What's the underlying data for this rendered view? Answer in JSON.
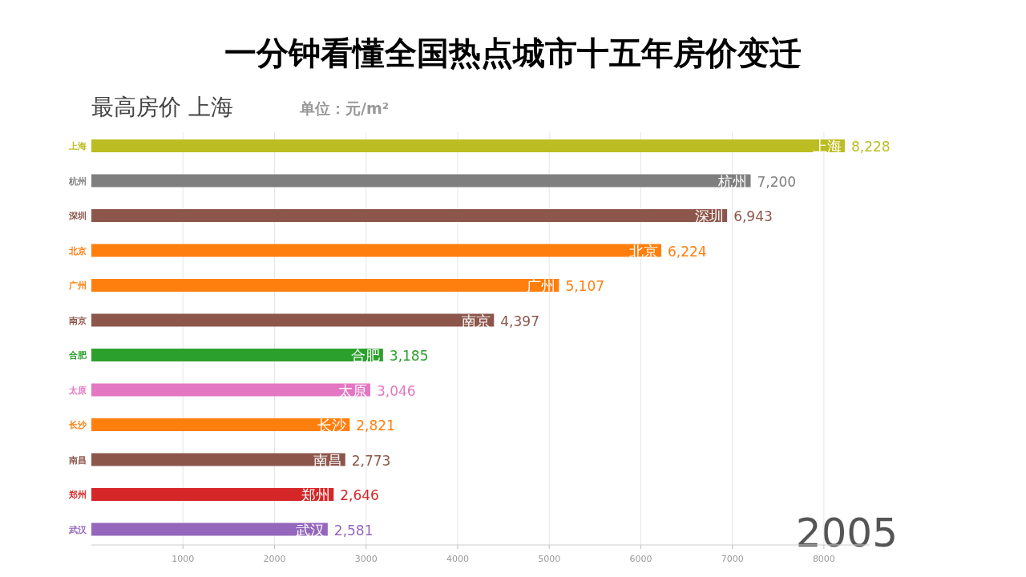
{
  "chart_data": {
    "type": "bar",
    "orientation": "horizontal",
    "title": "一分钟看懂全国热点城市十五年房价变迁",
    "subtitle": "最高房价  上海",
    "annotations": [
      "单位：元/m²",
      "2005"
    ],
    "categories": [
      "上海",
      "杭州",
      "深圳",
      "北京",
      "广州",
      "南京",
      "合肥",
      "太原",
      "长沙",
      "南昌",
      "郑州",
      "武汉"
    ],
    "values": [
      8228,
      7200,
      6943,
      6224,
      5107,
      4397,
      3185,
      3046,
      2821,
      2773,
      2646,
      2581
    ],
    "colors": [
      "#bcbd22",
      "#7f7f7f",
      "#8c564b",
      "#ff7f0e",
      "#ff7f0e",
      "#8c564b",
      "#2ca02c",
      "#e377c2",
      "#ff7f0e",
      "#8c564b",
      "#d62728",
      "#9467bd"
    ],
    "xlim": [
      0,
      8500
    ],
    "xticks": [
      1000,
      2000,
      3000,
      4000,
      5000,
      6000,
      7000,
      8000
    ],
    "value_labels": [
      "8,228",
      "7,200",
      "6,943",
      "6,224",
      "5,107",
      "4,397",
      "3,185",
      "3,046",
      "2,821",
      "2,773",
      "2,646",
      "2,581"
    ],
    "grid": "x"
  }
}
